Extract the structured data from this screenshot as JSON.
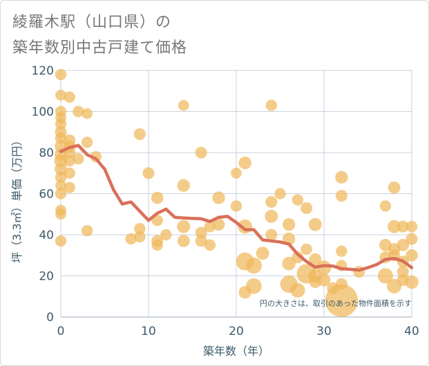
{
  "title": {
    "line1": "綾羅木駅（山口県）の",
    "line2": "築年数別中古戸建て価格"
  },
  "colors": {
    "bubble": "#f0b85b",
    "line": "#d9705a",
    "grid": "#c8d2dc",
    "axis_text": "#3d5a6b"
  },
  "chart_data": {
    "type": "scatter",
    "title": "綾羅木駅（山口県）の築年数別中古戸建て価格",
    "xlabel": "築年数（年）",
    "ylabel": "坪（3.3㎡）単価（万円）",
    "xlim": [
      0,
      40
    ],
    "ylim": [
      0,
      120
    ],
    "xticks": [
      "0",
      "10",
      "20",
      "30",
      "40"
    ],
    "yticks": [
      "0",
      "20",
      "40",
      "60",
      "80",
      "100",
      "120"
    ],
    "grid": true,
    "note": "円の大きさは、取引のあった物件面積を示す",
    "points": [
      [
        0,
        118,
        1.2
      ],
      [
        0,
        108,
        1.1
      ],
      [
        0,
        100,
        1.2
      ],
      [
        0,
        97,
        1.1
      ],
      [
        0,
        94,
        1.2
      ],
      [
        0,
        90,
        1.3
      ],
      [
        0,
        87,
        1.2
      ],
      [
        0,
        83,
        1.4
      ],
      [
        0,
        79,
        1.5
      ],
      [
        0,
        76,
        1.6
      ],
      [
        0,
        72,
        1.4
      ],
      [
        0,
        68,
        1.2
      ],
      [
        0,
        64,
        1.1
      ],
      [
        0,
        60,
        1.2
      ],
      [
        0,
        52,
        1.1
      ],
      [
        0,
        50,
        1.1
      ],
      [
        0,
        37,
        1.2
      ],
      [
        1,
        107,
        1.2
      ],
      [
        1,
        86,
        1.3
      ],
      [
        1,
        83,
        1.3
      ],
      [
        1,
        80,
        1.3
      ],
      [
        1,
        76,
        1.2
      ],
      [
        1,
        70,
        1.2
      ],
      [
        1,
        63,
        1.2
      ],
      [
        2,
        100,
        1.2
      ],
      [
        2,
        77,
        1.2
      ],
      [
        3,
        99,
        1.1
      ],
      [
        3,
        85,
        1.2
      ],
      [
        3,
        42,
        1.2
      ],
      [
        4,
        78,
        1.2
      ],
      [
        8,
        38,
        1.2
      ],
      [
        9,
        89,
        1.3
      ],
      [
        9,
        43,
        1.2
      ],
      [
        9,
        39,
        1.2
      ],
      [
        10,
        70,
        1.3
      ],
      [
        11,
        58,
        1.4
      ],
      [
        11,
        47,
        1.2
      ],
      [
        11,
        37,
        1.3
      ],
      [
        11,
        35,
        1.2
      ],
      [
        12,
        40,
        1.2
      ],
      [
        14,
        103,
        1.1
      ],
      [
        14,
        64,
        1.5
      ],
      [
        14,
        44,
        1.6
      ],
      [
        14,
        37,
        1.4
      ],
      [
        16,
        80,
        1.3
      ],
      [
        16,
        41,
        1.3
      ],
      [
        16,
        37,
        1.3
      ],
      [
        17,
        44,
        1.2
      ],
      [
        17,
        35,
        1.2
      ],
      [
        18,
        58,
        1.5
      ],
      [
        18,
        45,
        1.4
      ],
      [
        20,
        70,
        1.1
      ],
      [
        20,
        54,
        1.2
      ],
      [
        21,
        75,
        1.5
      ],
      [
        21,
        44,
        1.9
      ],
      [
        21,
        27,
        3.0
      ],
      [
        21,
        12,
        1.5
      ],
      [
        22,
        25,
        2.4
      ],
      [
        22,
        15,
        2.3
      ],
      [
        23,
        31,
        1.6
      ],
      [
        24,
        103,
        1.2
      ],
      [
        24,
        56,
        1.3
      ],
      [
        24,
        49,
        1.6
      ],
      [
        24,
        40,
        1.3
      ],
      [
        25,
        60,
        1.2
      ],
      [
        26,
        45,
        1.5
      ],
      [
        26,
        38,
        1.5
      ],
      [
        26,
        26,
        1.7
      ],
      [
        26,
        16,
        2.8
      ],
      [
        27,
        57,
        1.2
      ],
      [
        27,
        29,
        1.3
      ],
      [
        27,
        13,
        2.0
      ],
      [
        28,
        53,
        1.3
      ],
      [
        28,
        33,
        1.2
      ],
      [
        28,
        21,
        3.5
      ],
      [
        29,
        45,
        1.6
      ],
      [
        29,
        28,
        1.4
      ],
      [
        29,
        20,
        1.8
      ],
      [
        29,
        17,
        1.3
      ],
      [
        30,
        24,
        1.9
      ],
      [
        30,
        18,
        1.6
      ],
      [
        31,
        14,
        1.3
      ],
      [
        32,
        68,
        1.5
      ],
      [
        32,
        59,
        1.3
      ],
      [
        32,
        32,
        1.2
      ],
      [
        32,
        25,
        1.2
      ],
      [
        32,
        16,
        1.3
      ],
      [
        32,
        8,
        10.0
      ],
      [
        34,
        22,
        1.3
      ],
      [
        37,
        54,
        1.2
      ],
      [
        37,
        35,
        1.4
      ],
      [
        37,
        29,
        1.3
      ],
      [
        37,
        20,
        2.2
      ],
      [
        38,
        63,
        1.4
      ],
      [
        38,
        44,
        1.6
      ],
      [
        38,
        33,
        1.4
      ],
      [
        38,
        30,
        1.3
      ],
      [
        38,
        15,
        2.0
      ],
      [
        39,
        44,
        1.3
      ],
      [
        39,
        35,
        1.4
      ],
      [
        39,
        27,
        1.3
      ],
      [
        39,
        22,
        1.3
      ],
      [
        39,
        18,
        1.3
      ],
      [
        40,
        44,
        1.2
      ],
      [
        40,
        38,
        1.3
      ],
      [
        40,
        30,
        1.4
      ],
      [
        40,
        17,
        1.7
      ]
    ],
    "trend": {
      "x": [
        0,
        1,
        2,
        3,
        4,
        5,
        6,
        7,
        8,
        9,
        10,
        11,
        12,
        13,
        14,
        15,
        16,
        17,
        18,
        19,
        20,
        21,
        22,
        23,
        24,
        25,
        26,
        27,
        28,
        29,
        30,
        31,
        32,
        33,
        34,
        35,
        36,
        37,
        38,
        39,
        40
      ],
      "y": [
        80.5,
        82.5,
        83.5,
        79,
        77,
        72,
        62,
        55,
        56,
        51.5,
        47,
        50.5,
        52.5,
        48.5,
        48.2,
        48,
        47.8,
        46.5,
        48.5,
        49,
        46,
        42.5,
        42.5,
        37.5,
        37,
        36.5,
        35.5,
        30.5,
        27,
        24.2,
        25,
        24.8,
        23.5,
        23.2,
        22.8,
        24,
        25.5,
        28,
        28.5,
        27.2,
        24
      ]
    }
  }
}
